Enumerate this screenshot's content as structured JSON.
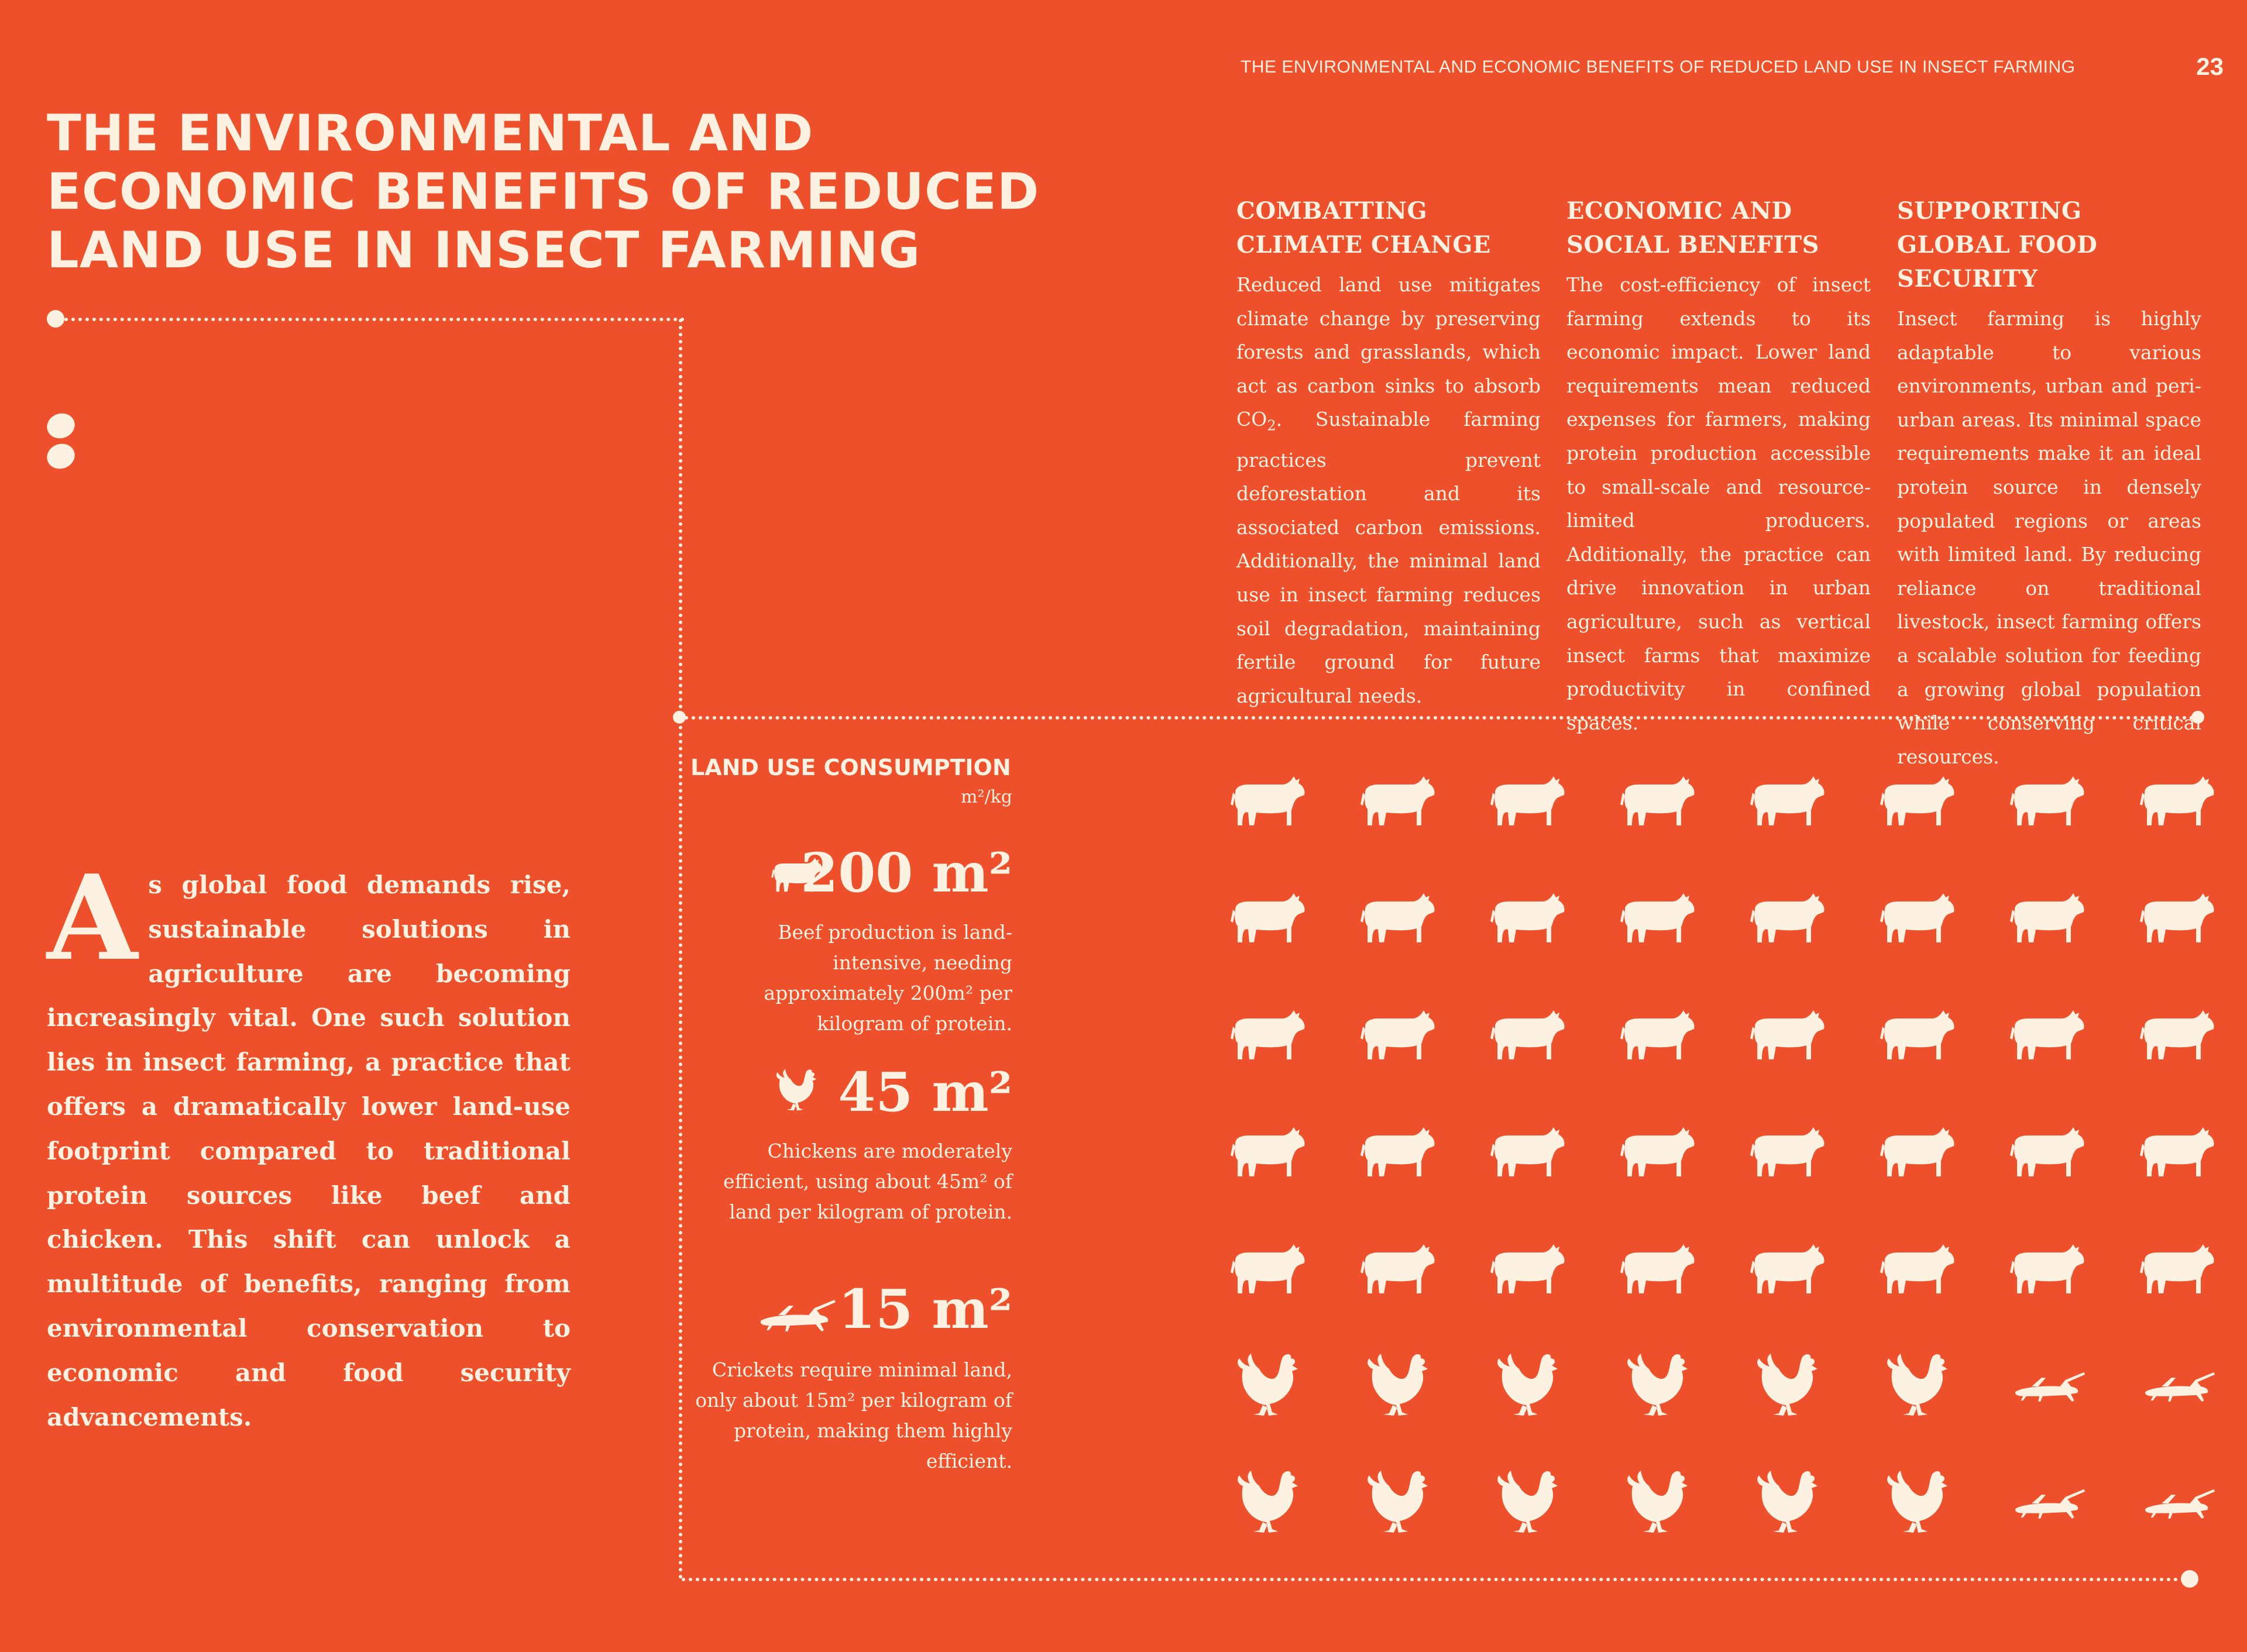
{
  "header": {
    "running_title": "THE ENVIRONMENTAL AND ECONOMIC BENEFITS OF REDUCED LAND USE IN INSECT FARMING",
    "page_number": "23"
  },
  "title": {
    "line1": "THE ENVIRONMENTAL AND",
    "line2": "ECONOMIC BENEFITS OF REDUCED",
    "line3": "LAND USE IN INSECT FARMING"
  },
  "columns": [
    {
      "heading": "COMBATTING CLIMATE CHANGE",
      "body_before": "Reduced land use mitigates climate change by preserving forests and grasslands, which act as carbon sinks to absorb CO",
      "body_sub": "2",
      "body_after": ". Sustainable farming practices prevent deforestation and its associated carbon emissions. Additionally, the minimal land use in insect farming reduces soil degradation, maintaining fertile ground for future agricultural needs."
    },
    {
      "heading": "ECONOMIC AND SOCIAL BENEFITS",
      "body": "The cost-efficiency of insect farming extends to its economic impact. Lower land requirements mean reduced expenses for farmers, making protein production accessible to small-scale and resource-limited producers. Additionally, the practice can drive innovation in urban agriculture, such as vertical insect farms that maximize productivity in confined spaces."
    },
    {
      "heading": "SUPPORTING GLOBAL FOOD SECURITY",
      "body": "Insect farming is highly adaptable to various environments, urban and peri-urban areas. Its minimal space requirements make it an ideal protein source in densely populated regions or areas with limited land. By reducing reliance on traditional livestock, insect farming offers a scalable solution for feeding a growing global population while conserving critical resources."
    }
  ],
  "intro": {
    "dropcap": "A",
    "text": "s global food demands rise, sustainable solutions in agriculture are becoming increasingly vital. One such solution lies in insect farming, a practice that offers a dramatically lower land-use footprint compared to traditional protein sources like beef and chicken. This shift can unlock a multitude of benefits, ranging from environmental conservation to economic and food security advancements."
  },
  "legend": {
    "title": "LAND USE CONSUMPTION",
    "unit": "m²/kg",
    "items": [
      {
        "icon": "cow-icon",
        "value": "200 m²",
        "desc": "Beef production is land-intensive, needing approximately 200m² per kilogram of protein."
      },
      {
        "icon": "chicken-icon",
        "value": "45 m²",
        "desc": "Chickens are moderately efficient, using about 45m² of land per kilogram of protein."
      },
      {
        "icon": "cricket-icon",
        "value": "15 m²",
        "desc": "Crickets require minimal land, only about 15m² per kilogram of protein, making them highly efficient."
      }
    ]
  },
  "pictogram": {
    "columns": 8,
    "cow_count": 40,
    "chicken_count": 12,
    "cricket_count": 4,
    "colors": {
      "background": "#ee502c",
      "foreground": "#fdf1e2"
    }
  }
}
